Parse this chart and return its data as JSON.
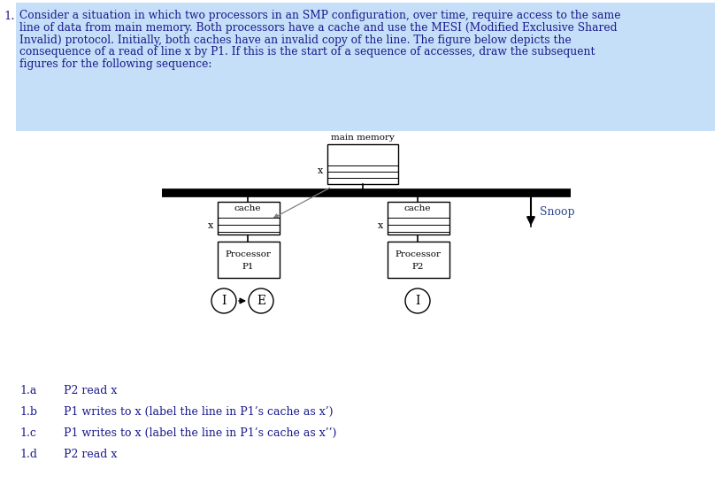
{
  "highlight_color": "#c5dff8",
  "text_color": "#1a1a8c",
  "diagram_color": "#000000",
  "snoop_color": "#2e4a8c",
  "background_color": "#ffffff",
  "paragraph_lines": [
    "Consider a situation in which two processors in an SMP configuration, over time, require access to the same",
    "line of data from main memory. Both processors have a cache and use the MESI (Modified Exclusive Shared",
    "Invalid) protocol. Initially, both caches have an invalid copy of the line. The figure below depicts the",
    "consequence of a read of line x by P1. If this is the start of a sequence of accesses, draw the subsequent",
    "figures for the following sequence:"
  ],
  "list_items": [
    {
      "label": "1.a",
      "tab": "P2 read x"
    },
    {
      "label": "1.b",
      "tab": "P1 writes to x (label the line in P1’s cache as x’)"
    },
    {
      "label": "1.c",
      "tab": "P1 writes to x (label the line in P1’s cache as x’’)"
    },
    {
      "label": "1.d",
      "tab": "P2 read x"
    }
  ],
  "num_label": "1.",
  "mm_label": "main memory",
  "snoop_label": "Snoop",
  "p1_label1": "Processor",
  "p1_label2": "P1",
  "p2_label1": "Processor",
  "p2_label2": "P2",
  "cache_label": "cache",
  "state_p1_from": "I",
  "state_p1_to": "E",
  "state_p2": "I"
}
